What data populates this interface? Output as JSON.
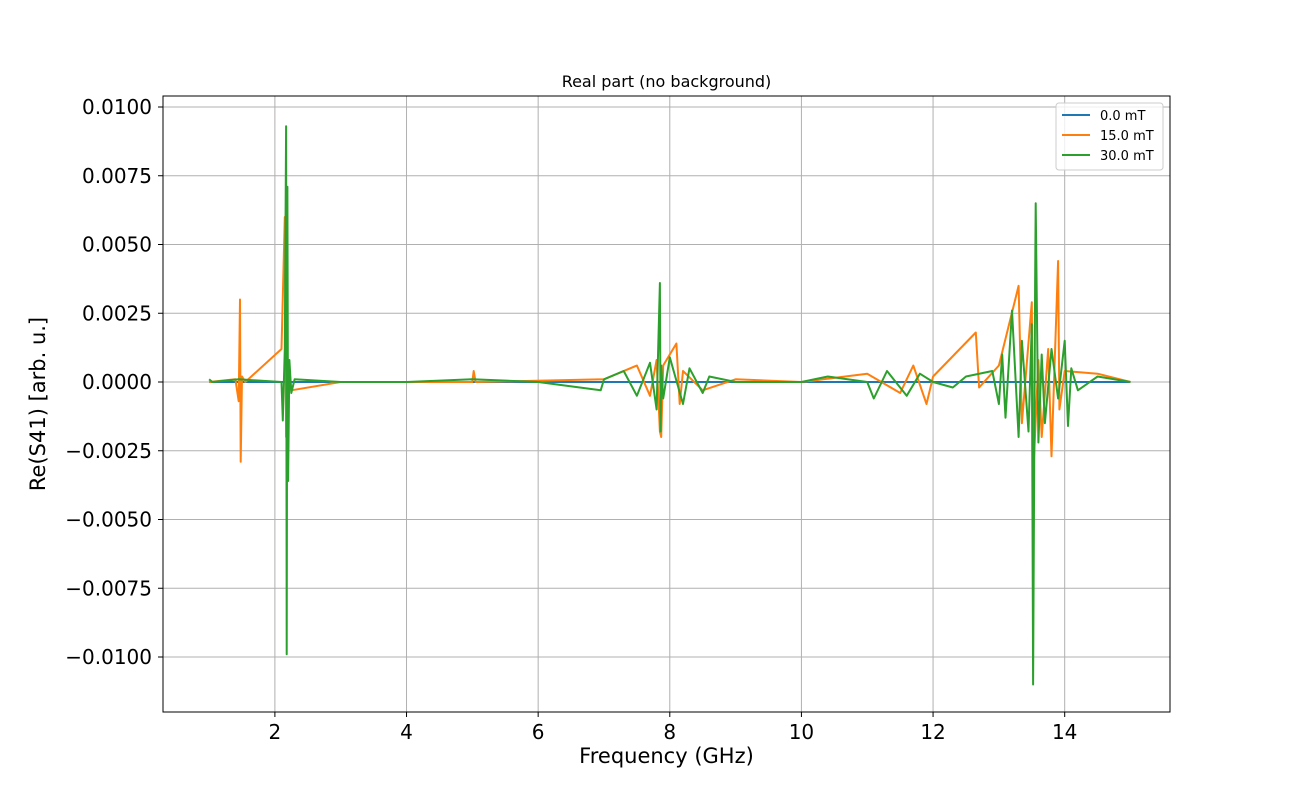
{
  "chart_data": {
    "type": "line",
    "title": "Real part (no background)",
    "xlabel": "Frequency (GHz)",
    "ylabel": "Re(S41) [arb. u.]",
    "xlim": [
      0.3,
      15.6
    ],
    "ylim": [
      -0.012,
      0.0104
    ],
    "xticks": [
      2,
      4,
      6,
      8,
      10,
      12,
      14
    ],
    "xtick_labels": [
      "2",
      "4",
      "6",
      "8",
      "10",
      "12",
      "14"
    ],
    "yticks": [
      -0.01,
      -0.0075,
      -0.005,
      -0.0025,
      0.0,
      0.0025,
      0.005,
      0.0075,
      0.01
    ],
    "ytick_labels": [
      "−0.0100",
      "−0.0075",
      "−0.0050",
      "−0.0025",
      "0.0000",
      "0.0025",
      "0.0050",
      "0.0075",
      "0.0100"
    ],
    "grid": true,
    "legend_position": "top-right",
    "series": [
      {
        "name": "0.0 mT",
        "color": "#1f77b4",
        "x": [
          1.0,
          2.0,
          4.0,
          6.0,
          8.0,
          10.0,
          12.0,
          14.0,
          15.0
        ],
        "y": [
          0.0,
          0.0,
          0.0,
          0.0,
          0.0,
          0.0,
          0.0,
          0.0,
          0.0
        ]
      },
      {
        "name": "15.0 mT",
        "color": "#ff7f0e",
        "x": [
          1.0,
          1.4,
          1.45,
          1.47,
          1.48,
          1.5,
          1.55,
          2.1,
          2.15,
          2.17,
          2.2,
          2.25,
          3.0,
          5.0,
          5.02,
          5.05,
          7.0,
          7.5,
          7.7,
          7.8,
          7.85,
          7.87,
          7.9,
          8.1,
          8.15,
          8.2,
          8.5,
          9.0,
          10.0,
          11.0,
          11.5,
          11.7,
          11.9,
          12.0,
          12.65,
          12.7,
          13.0,
          13.3,
          13.35,
          13.5,
          13.52,
          13.6,
          13.65,
          13.75,
          13.8,
          13.9,
          13.92,
          14.0,
          14.5,
          15.0
        ],
        "y": [
          0.0,
          0.0001,
          -0.0007,
          0.003,
          -0.0029,
          0.0002,
          0.0,
          0.0012,
          0.006,
          -0.002,
          0.0008,
          -0.0003,
          0.0,
          0.0,
          0.0004,
          0.0,
          0.0001,
          0.0006,
          -0.0005,
          0.0008,
          -0.0018,
          -0.002,
          0.0006,
          0.0014,
          -0.0008,
          0.0004,
          -0.0003,
          0.0001,
          0.0,
          0.0003,
          -0.0004,
          0.0006,
          -0.0008,
          0.0002,
          0.0018,
          -0.0002,
          0.0006,
          0.0035,
          -0.0015,
          0.0029,
          -0.0035,
          0.0008,
          -0.002,
          0.0012,
          -0.0027,
          0.0044,
          -0.001,
          0.0004,
          0.0003,
          0.0
        ]
      },
      {
        "name": "30.0 mT",
        "color": "#2ca02c",
        "x": [
          1.0,
          1.05,
          1.45,
          2.1,
          2.12,
          2.15,
          2.17,
          2.18,
          2.19,
          2.2,
          2.22,
          2.25,
          2.3,
          3.0,
          4.0,
          5.0,
          6.0,
          6.95,
          7.0,
          7.3,
          7.5,
          7.7,
          7.8,
          7.85,
          7.86,
          7.87,
          7.9,
          8.0,
          8.2,
          8.3,
          8.5,
          8.6,
          9.0,
          10.0,
          10.4,
          11.0,
          11.1,
          11.3,
          11.6,
          11.8,
          12.0,
          12.3,
          12.5,
          12.9,
          13.0,
          13.05,
          13.1,
          13.2,
          13.3,
          13.35,
          13.45,
          13.5,
          13.52,
          13.55,
          13.56,
          13.6,
          13.65,
          13.7,
          13.8,
          13.9,
          14.0,
          14.05,
          14.1,
          14.2,
          14.5,
          15.0
        ],
        "y": [
          0.0001,
          0.0,
          0.0001,
          0.0,
          -0.0014,
          0.0012,
          0.0093,
          -0.0099,
          0.0071,
          -0.0036,
          0.0008,
          -0.0004,
          0.0001,
          0.0,
          0.0,
          0.0001,
          0.0,
          -0.0003,
          0.0001,
          0.0004,
          -0.0005,
          0.0007,
          -0.001,
          0.0036,
          -0.0018,
          0.0006,
          -0.0006,
          0.0009,
          -0.0008,
          0.0005,
          -0.0004,
          0.0002,
          0.0,
          0.0,
          0.0002,
          0.0,
          -0.0006,
          0.0004,
          -0.0005,
          0.0003,
          0.0,
          -0.0002,
          0.0002,
          0.0004,
          -0.0008,
          0.001,
          -0.0013,
          0.0026,
          -0.002,
          0.0015,
          -0.0018,
          0.0021,
          -0.011,
          0.0035,
          0.0065,
          -0.0022,
          0.001,
          -0.0015,
          0.0012,
          -0.0006,
          0.0015,
          -0.0016,
          0.0005,
          -0.0003,
          0.0002,
          0.0
        ]
      }
    ]
  }
}
